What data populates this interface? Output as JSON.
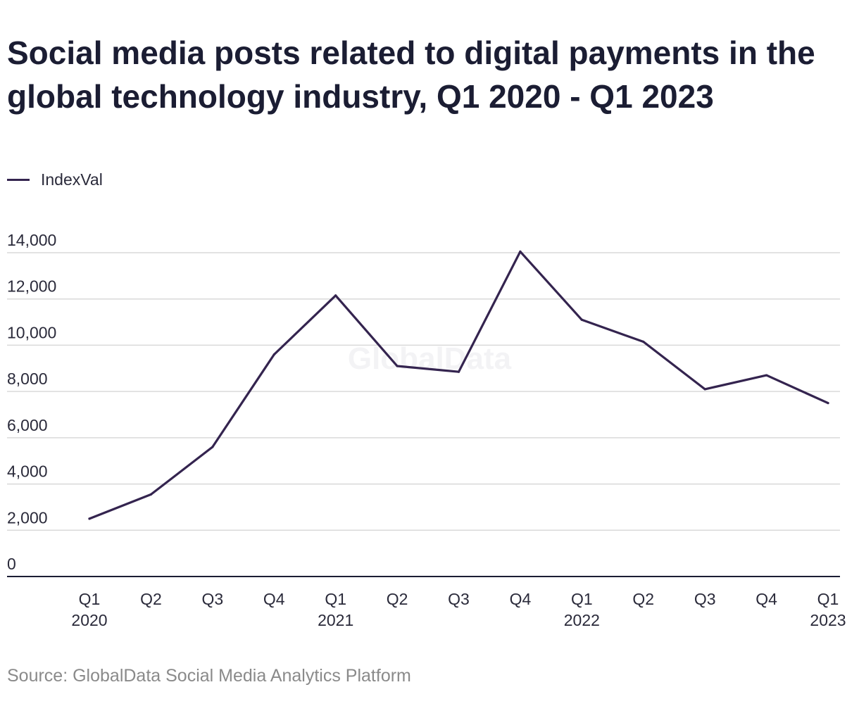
{
  "title": "Social media posts related to digital payments in the global technology industry, Q1 2020 - Q1 2023",
  "legend": {
    "label": "IndexVal"
  },
  "watermark": "GlobalData",
  "source": "Source: GlobalData Social Media Analytics Platform",
  "colors": {
    "line": "#34244f",
    "title": "#1b1d33",
    "grid": "#d9d9d9",
    "axis": "#1b1d33"
  },
  "chart_data": {
    "type": "line",
    "categories": [
      [
        "Q1",
        "2020"
      ],
      [
        "Q2",
        ""
      ],
      [
        "Q3",
        ""
      ],
      [
        "Q4",
        ""
      ],
      [
        "Q1",
        "2021"
      ],
      [
        "Q2",
        ""
      ],
      [
        "Q3",
        ""
      ],
      [
        "Q4",
        ""
      ],
      [
        "Q1",
        "2022"
      ],
      [
        "Q2",
        ""
      ],
      [
        "Q3",
        ""
      ],
      [
        "Q4",
        ""
      ],
      [
        "Q1",
        "2023"
      ]
    ],
    "series": [
      {
        "name": "IndexVal",
        "values": [
          2500,
          3550,
          5600,
          9600,
          12150,
          9100,
          8850,
          14050,
          11100,
          10150,
          8100,
          8700,
          7500
        ]
      }
    ],
    "ylim": [
      0,
      14000
    ],
    "yticks": [
      0,
      2000,
      4000,
      6000,
      8000,
      10000,
      12000,
      14000
    ],
    "ytick_labels": [
      "0",
      "2,000",
      "4,000",
      "6,000",
      "8,000",
      "10,000",
      "12,000",
      "14,000"
    ],
    "grid": true,
    "legend_position": "top-left"
  }
}
